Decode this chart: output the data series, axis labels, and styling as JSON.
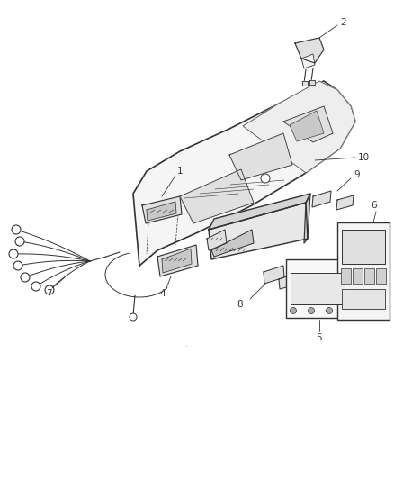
{
  "bg_color": "#ffffff",
  "line_color": "#333333",
  "fill_light": "#f2f2f2",
  "fill_mid": "#e0e0e0",
  "fill_dark": "#c8c8c8",
  "fig_width": 4.38,
  "fig_height": 5.33,
  "dpi": 100
}
